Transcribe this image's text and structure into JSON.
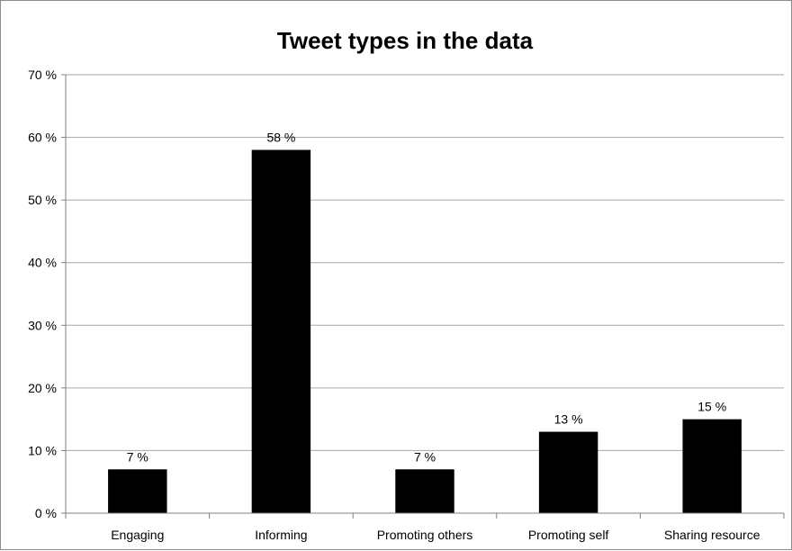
{
  "chart_data": {
    "type": "bar",
    "title": "Tweet  types in the data",
    "categories": [
      "Engaging",
      "Informing",
      "Promoting others",
      "Promoting self",
      "Sharing resource"
    ],
    "values": [
      7,
      58,
      7,
      13,
      15
    ],
    "data_labels": [
      "7 %",
      "58 %",
      "7 %",
      "13 %",
      "15 %"
    ],
    "y_ticks": [
      "0 %",
      "10 %",
      "20 %",
      "30 %",
      "40 %",
      "50 %",
      "60 %",
      "70 %"
    ],
    "ylim": [
      0,
      70
    ],
    "xlabel": "",
    "ylabel": "",
    "grid": true,
    "legend": "none",
    "bar_color": "#000000",
    "grid_color": "#a6a6a6"
  }
}
